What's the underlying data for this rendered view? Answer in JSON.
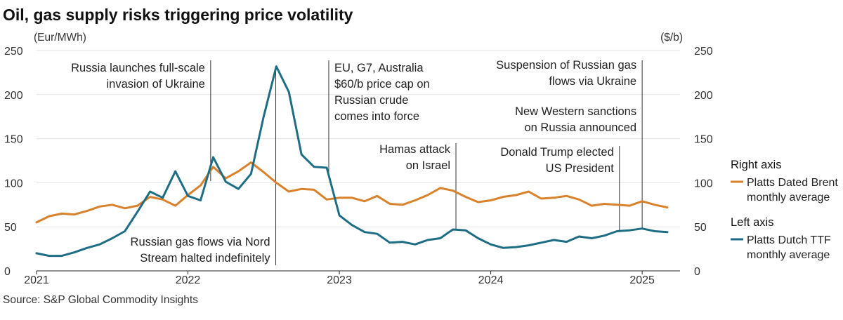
{
  "chart_data": {
    "type": "line",
    "title": "Oil, gas supply risks triggering price volatility",
    "left_axis": {
      "unit": "(Eur/MWh)",
      "range": [
        0,
        250
      ],
      "ticks": [
        0,
        50,
        100,
        150,
        200,
        250
      ]
    },
    "right_axis": {
      "unit": "($/b)",
      "range": [
        0,
        250
      ],
      "ticks": [
        0,
        50,
        100,
        150,
        200,
        250
      ]
    },
    "x_range": [
      2021.0,
      2025.25
    ],
    "x_ticks": [
      {
        "value": 2021,
        "label": "2021"
      },
      {
        "value": 2022,
        "label": "2022"
      },
      {
        "value": 2023,
        "label": "2023"
      },
      {
        "value": 2024,
        "label": "2024"
      },
      {
        "value": 2025,
        "label": "2025"
      }
    ],
    "months": [
      "2021-01",
      "2021-02",
      "2021-03",
      "2021-04",
      "2021-05",
      "2021-06",
      "2021-07",
      "2021-08",
      "2021-09",
      "2021-10",
      "2021-11",
      "2021-12",
      "2022-01",
      "2022-02",
      "2022-03",
      "2022-04",
      "2022-05",
      "2022-06",
      "2022-07",
      "2022-08",
      "2022-09",
      "2022-10",
      "2022-11",
      "2022-12",
      "2023-01",
      "2023-02",
      "2023-03",
      "2023-04",
      "2023-05",
      "2023-06",
      "2023-07",
      "2023-08",
      "2023-09",
      "2023-10",
      "2023-11",
      "2023-12",
      "2024-01",
      "2024-02",
      "2024-03",
      "2024-04",
      "2024-05",
      "2024-06",
      "2024-07",
      "2024-08",
      "2024-09",
      "2024-10",
      "2024-11",
      "2024-12",
      "2025-01",
      "2025-02",
      "2025-03"
    ],
    "series": [
      {
        "name": "Platts Dated Brent monthly average",
        "axis": "right",
        "color": "#d9822b",
        "values": [
          55,
          62,
          65,
          64,
          68,
          73,
          75,
          71,
          74,
          84,
          81,
          74,
          86,
          97,
          118,
          105,
          113,
          123,
          112,
          100,
          90,
          93,
          92,
          81,
          83,
          83,
          79,
          85,
          76,
          75,
          80,
          86,
          94,
          91,
          84,
          78,
          80,
          84,
          86,
          90,
          82,
          83,
          85,
          81,
          74,
          76,
          75,
          74,
          79,
          75,
          72
        ]
      },
      {
        "name": "Platts Dutch TTF monthly average",
        "axis": "left",
        "color": "#1d6d84",
        "values": [
          20,
          17,
          17,
          21,
          26,
          30,
          37,
          45,
          67,
          90,
          83,
          113,
          85,
          80,
          129,
          101,
          93,
          110,
          175,
          232,
          203,
          132,
          118,
          117,
          63,
          52,
          44,
          42,
          32,
          33,
          30,
          35,
          37,
          47,
          46,
          37,
          30,
          26,
          27,
          29,
          32,
          35,
          33,
          39,
          37,
          40,
          45,
          46,
          48,
          45,
          44
        ]
      }
    ],
    "annotations": [
      {
        "id": "invasion",
        "lines": [
          "Russia launches full-scale",
          "invasion of Ukraine"
        ],
        "x": 2022.15,
        "align": "end"
      },
      {
        "id": "nordstream",
        "lines": [
          "Russian gas flows via Nord",
          "Stream halted indefinitely"
        ],
        "x": 2022.58,
        "align": "end"
      },
      {
        "id": "pricecap",
        "lines": [
          "EU, G7, Australia",
          "$60/b price cap on",
          "Russian crude",
          "comes into force"
        ],
        "x": 2022.93,
        "align": "start"
      },
      {
        "id": "hamas",
        "lines": [
          "Hamas attack",
          "on Israel"
        ],
        "x": 2023.77,
        "align": "end"
      },
      {
        "id": "trump",
        "lines": [
          "Donald Trump elected",
          "US President"
        ],
        "x": 2024.85,
        "align": "end"
      },
      {
        "id": "suspension",
        "lines": [
          "Suspension of Russian gas",
          "flows via Ukraine"
        ],
        "x": 2025.0,
        "align": "end"
      },
      {
        "id": "sanctions",
        "lines": [
          "New Western sanctions",
          "on Russia announced"
        ],
        "x": 2025.0,
        "align": "end"
      }
    ],
    "legend": [
      {
        "heading": "Right axis",
        "lines": [
          "Platts Dated Brent",
          "monthly average"
        ],
        "color": "#d9822b"
      },
      {
        "heading": "Left axis",
        "lines": [
          "Platts Dutch TTF",
          "monthly average"
        ],
        "color": "#1d6d84"
      }
    ],
    "source": "Source: S&P Global Commodity Insights"
  }
}
